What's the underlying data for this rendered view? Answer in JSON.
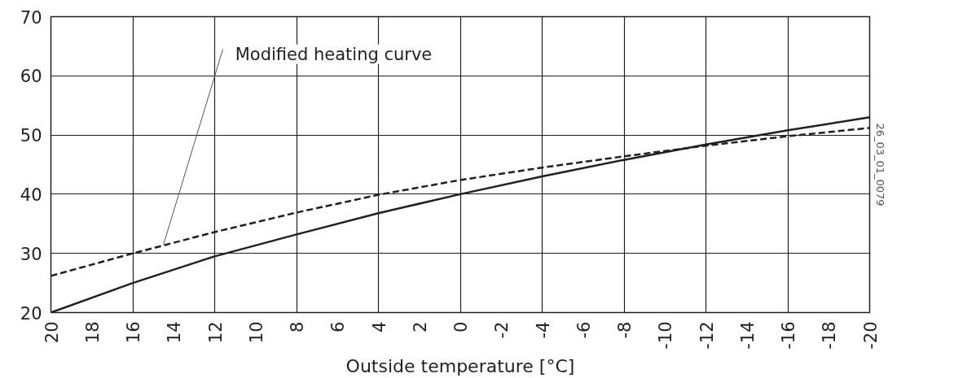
{
  "chart_data": {
    "type": "line",
    "xlabel": "Outside temperature [°C]",
    "x": [
      20,
      16,
      12,
      8,
      4,
      0,
      -4,
      -8,
      -12,
      -16,
      -20
    ],
    "series": [
      {
        "color": "#231f20",
        "line_style": "solid",
        "values": [
          20,
          25,
          29.5,
          33.2,
          36.8,
          40,
          43,
          45.8,
          48.4,
          50.8,
          53
        ]
      },
      {
        "color": "#231f20",
        "line_style": "dashed",
        "values": [
          26.2,
          30,
          33.6,
          36.9,
          39.9,
          42.4,
          44.5,
          46.4,
          48.2,
          49.8,
          51.2
        ]
      }
    ],
    "xlim": [
      20,
      -20
    ],
    "xticks": [
      20,
      18,
      16,
      14,
      12,
      10,
      8,
      6,
      4,
      2,
      0,
      -2,
      -4,
      -6,
      -8,
      -10,
      -12,
      -14,
      -16,
      -18,
      -20
    ],
    "ylim": [
      20,
      70
    ],
    "yticks": [
      20,
      30,
      40,
      50,
      60,
      70
    ],
    "grid": true,
    "marker": "none",
    "annotations": [
      {
        "text": "Modified heating curve",
        "x": 14.5,
        "y": 31.5
      },
      "26_03_01_0079"
    ]
  }
}
